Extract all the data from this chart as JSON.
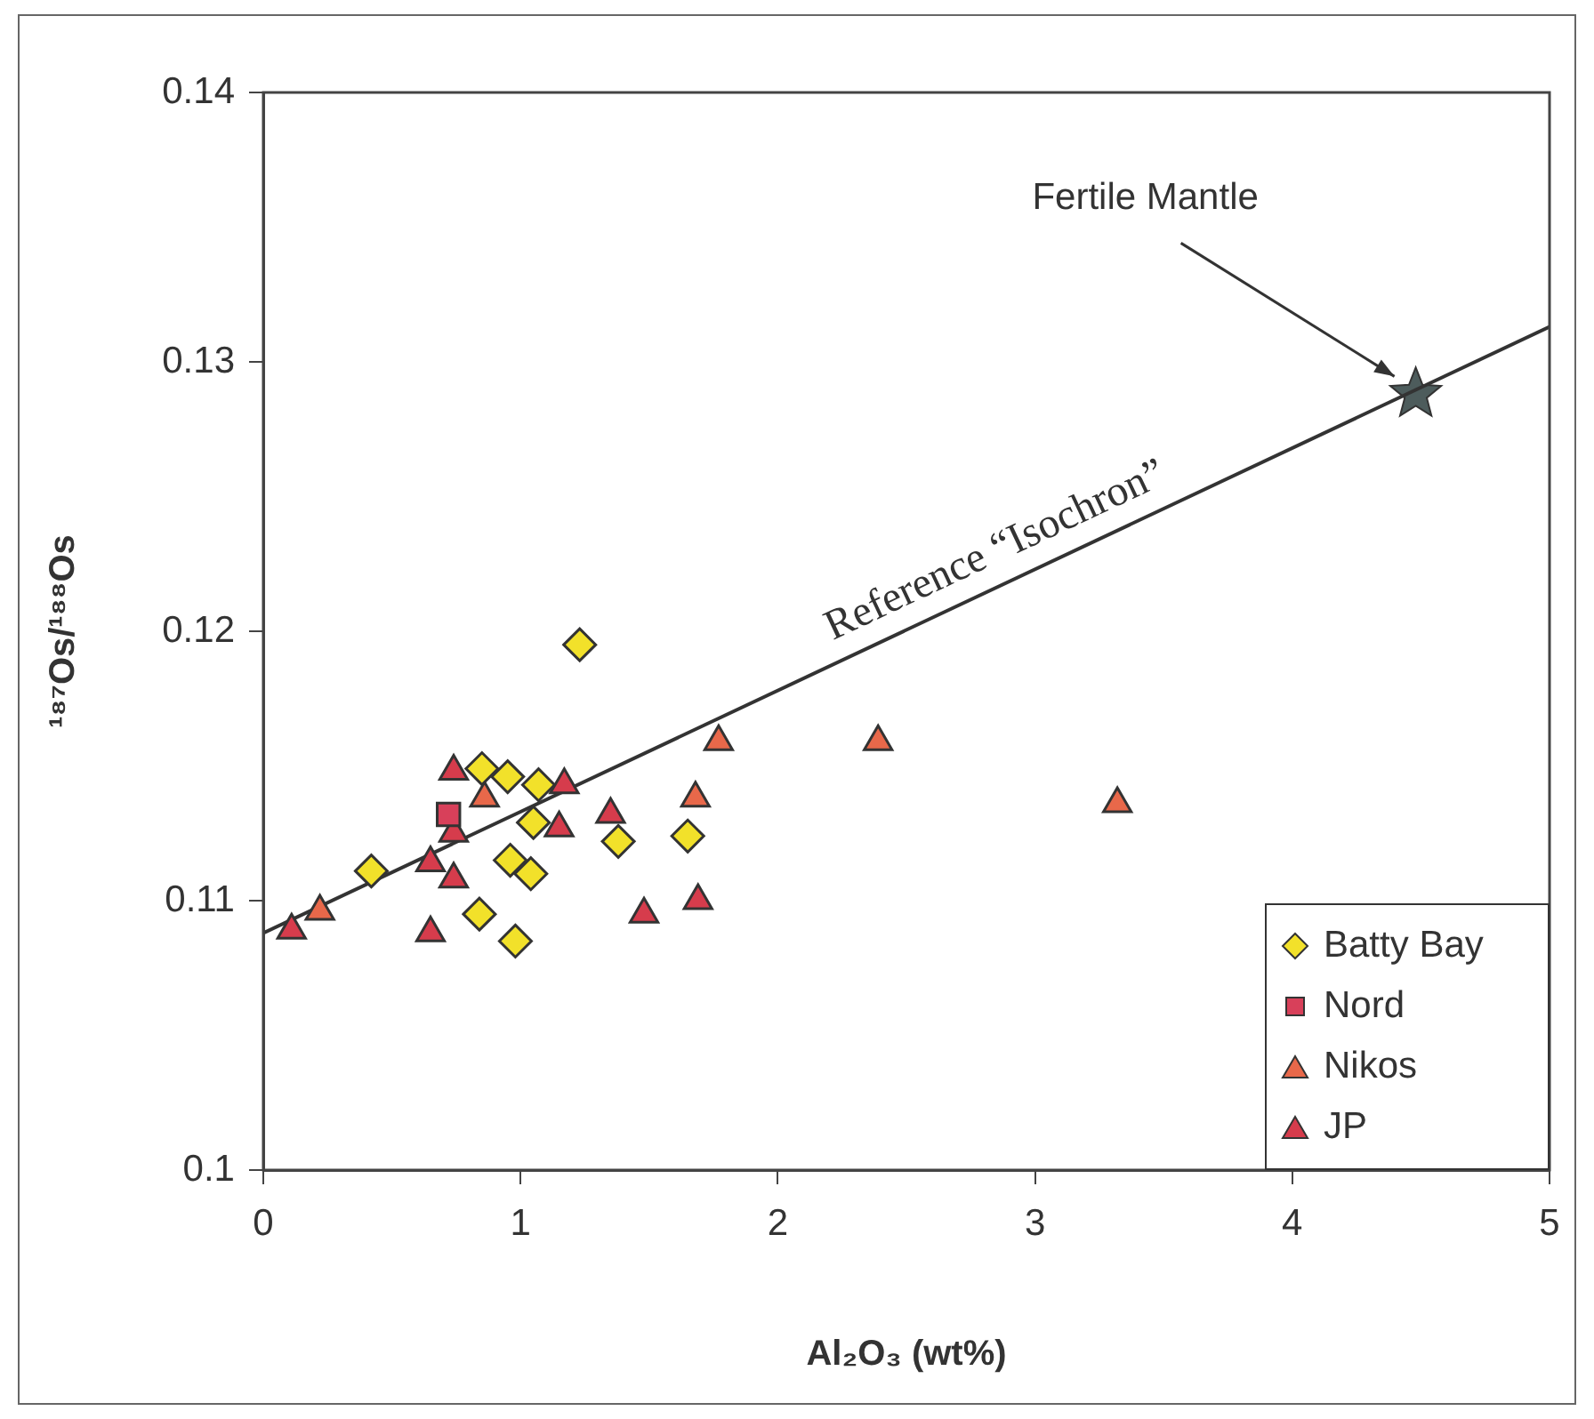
{
  "chart_data": {
    "type": "scatter",
    "xlabel": "Al₂O₃ (wt%)",
    "ylabel": "¹⁸⁷Os/¹⁸⁸Os",
    "xlim": [
      0,
      5
    ],
    "xticks": [
      0,
      1,
      2,
      3,
      4,
      5
    ],
    "ylim": [
      0.1,
      0.14
    ],
    "yticks": [
      0.1,
      0.11,
      0.12,
      0.13,
      0.14
    ],
    "grid": false,
    "legend": "bottom right",
    "series": [
      {
        "name": "Batty Bay",
        "color": "#f2e12a",
        "marker": "diamond",
        "x": [
          1.23,
          0.42,
          0.85,
          0.95,
          1.07,
          1.05,
          0.96,
          1.04,
          0.84,
          0.98,
          1.38,
          1.65
        ],
        "values": [
          0.1195,
          0.1111,
          0.1149,
          0.1146,
          0.1143,
          0.1129,
          0.1115,
          0.111,
          0.1095,
          0.1085,
          0.1122,
          0.1124
        ]
      },
      {
        "name": "Nord",
        "color": "#d8405a",
        "marker": "square",
        "x": [
          0.72
        ],
        "values": [
          0.1132
        ]
      },
      {
        "name": "Nikos",
        "color": "#e8684a",
        "marker": "triangle",
        "x": [
          0.22,
          0.86,
          1.77,
          1.68,
          2.39,
          3.32
        ],
        "values": [
          0.1096,
          0.1138,
          0.1159,
          0.1138,
          0.1159,
          0.1136
        ]
      },
      {
        "name": "JP",
        "color": "#d63c4c",
        "marker": "triangle",
        "x": [
          0.11,
          0.65,
          0.74,
          0.74,
          0.74,
          1.17,
          1.15,
          1.35,
          0.65,
          1.48,
          1.69
        ],
        "values": [
          0.1089,
          0.1114,
          0.1108,
          0.1125,
          0.1148,
          0.1143,
          0.1127,
          0.1132,
          0.1088,
          0.1095,
          0.11
        ]
      },
      {
        "type": "line",
        "color": "#333333",
        "marker": "none",
        "x": [
          0,
          5
        ],
        "values": [
          0.1088,
          0.1313
        ]
      },
      {
        "name": "Fertile Mantle",
        "color": "#4d5c5c",
        "marker": "star",
        "x": [
          4.48
        ],
        "values": [
          0.1288
        ]
      }
    ],
    "annotations": [
      {
        "text": "Reference “Isochron”",
        "x": 2.9,
        "y": 0.1219
      }
    ]
  }
}
